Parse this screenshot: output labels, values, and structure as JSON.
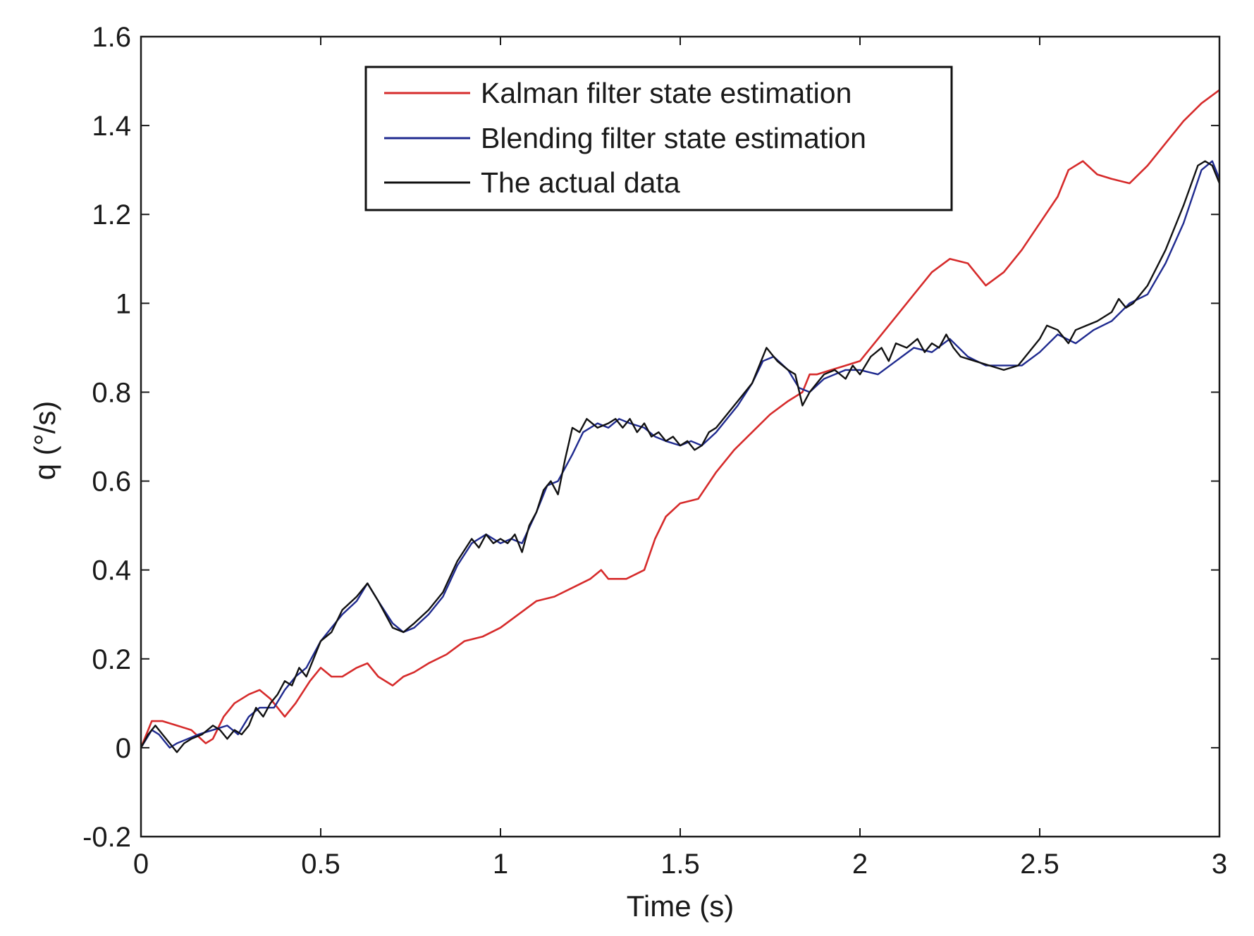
{
  "chart_data": {
    "type": "line",
    "title": "",
    "xlabel": "Time (s)",
    "ylabel": "q (°/s)",
    "xlim": [
      0,
      3
    ],
    "ylim": [
      -0.2,
      1.6
    ],
    "xticks": [
      0,
      0.5,
      1,
      1.5,
      2,
      2.5,
      3
    ],
    "xtick_labels": [
      "0",
      "0.5",
      "1",
      "1.5",
      "2",
      "2.5",
      "3"
    ],
    "yticks": [
      -0.2,
      0,
      0.2,
      0.4,
      0.6,
      0.8,
      1,
      1.2,
      1.4,
      1.6
    ],
    "ytick_labels": [
      "-0.2",
      "0",
      "0.2",
      "0.4",
      "0.6",
      "0.8",
      "1",
      "1.2",
      "1.4",
      "1.6"
    ],
    "grid": false,
    "legend_position": "top-center",
    "series": [
      {
        "name": "Kalman filter state estimation",
        "color": "#d62b2b",
        "x": [
          0,
          0.03,
          0.06,
          0.1,
          0.14,
          0.18,
          0.2,
          0.23,
          0.26,
          0.3,
          0.33,
          0.36,
          0.38,
          0.4,
          0.43,
          0.47,
          0.5,
          0.53,
          0.56,
          0.6,
          0.63,
          0.66,
          0.7,
          0.73,
          0.76,
          0.8,
          0.85,
          0.9,
          0.95,
          1.0,
          1.05,
          1.1,
          1.15,
          1.2,
          1.25,
          1.28,
          1.3,
          1.35,
          1.4,
          1.43,
          1.46,
          1.5,
          1.55,
          1.6,
          1.65,
          1.7,
          1.75,
          1.8,
          1.84,
          1.86,
          1.88,
          1.92,
          1.96,
          2.0,
          2.05,
          2.1,
          2.15,
          2.2,
          2.25,
          2.3,
          2.35,
          2.4,
          2.45,
          2.5,
          2.55,
          2.58,
          2.62,
          2.66,
          2.7,
          2.75,
          2.8,
          2.85,
          2.9,
          2.95,
          3.0
        ],
        "values": [
          0,
          0.06,
          0.06,
          0.05,
          0.04,
          0.01,
          0.02,
          0.07,
          0.1,
          0.12,
          0.13,
          0.11,
          0.09,
          0.07,
          0.1,
          0.15,
          0.18,
          0.16,
          0.16,
          0.18,
          0.19,
          0.16,
          0.14,
          0.16,
          0.17,
          0.19,
          0.21,
          0.24,
          0.25,
          0.27,
          0.3,
          0.33,
          0.34,
          0.36,
          0.38,
          0.4,
          0.38,
          0.38,
          0.4,
          0.47,
          0.52,
          0.55,
          0.56,
          0.62,
          0.67,
          0.71,
          0.75,
          0.78,
          0.8,
          0.84,
          0.84,
          0.85,
          0.86,
          0.87,
          0.92,
          0.97,
          1.02,
          1.07,
          1.1,
          1.09,
          1.04,
          1.07,
          1.12,
          1.18,
          1.24,
          1.3,
          1.32,
          1.29,
          1.28,
          1.27,
          1.31,
          1.36,
          1.41,
          1.45,
          1.48
        ]
      },
      {
        "name": "Blending filter state estimation",
        "color": "#1f2a8f",
        "x": [
          0,
          0.03,
          0.05,
          0.08,
          0.1,
          0.13,
          0.16,
          0.2,
          0.24,
          0.27,
          0.3,
          0.33,
          0.37,
          0.4,
          0.43,
          0.46,
          0.5,
          0.53,
          0.56,
          0.6,
          0.63,
          0.66,
          0.7,
          0.73,
          0.76,
          0.8,
          0.84,
          0.88,
          0.92,
          0.96,
          1.0,
          1.03,
          1.06,
          1.1,
          1.13,
          1.16,
          1.2,
          1.23,
          1.27,
          1.3,
          1.33,
          1.36,
          1.4,
          1.43,
          1.46,
          1.5,
          1.53,
          1.56,
          1.6,
          1.63,
          1.66,
          1.7,
          1.73,
          1.76,
          1.8,
          1.83,
          1.86,
          1.9,
          1.93,
          1.96,
          2.0,
          2.05,
          2.1,
          2.15,
          2.2,
          2.25,
          2.3,
          2.35,
          2.4,
          2.45,
          2.5,
          2.55,
          2.6,
          2.65,
          2.7,
          2.75,
          2.8,
          2.85,
          2.9,
          2.95,
          2.98,
          3.0
        ],
        "values": [
          0,
          0.04,
          0.03,
          0.0,
          0.01,
          0.02,
          0.03,
          0.04,
          0.05,
          0.03,
          0.07,
          0.09,
          0.09,
          0.13,
          0.16,
          0.18,
          0.24,
          0.27,
          0.3,
          0.33,
          0.37,
          0.33,
          0.28,
          0.26,
          0.27,
          0.3,
          0.34,
          0.41,
          0.46,
          0.48,
          0.46,
          0.47,
          0.46,
          0.53,
          0.59,
          0.6,
          0.66,
          0.71,
          0.73,
          0.72,
          0.74,
          0.73,
          0.72,
          0.7,
          0.69,
          0.68,
          0.69,
          0.68,
          0.71,
          0.74,
          0.77,
          0.82,
          0.87,
          0.88,
          0.85,
          0.81,
          0.8,
          0.83,
          0.84,
          0.85,
          0.85,
          0.84,
          0.87,
          0.9,
          0.89,
          0.92,
          0.88,
          0.86,
          0.86,
          0.86,
          0.89,
          0.93,
          0.91,
          0.94,
          0.96,
          1.0,
          1.02,
          1.09,
          1.18,
          1.3,
          1.32,
          1.28
        ]
      },
      {
        "name": "The actual data",
        "color": "#111111",
        "x": [
          0,
          0.02,
          0.04,
          0.06,
          0.08,
          0.1,
          0.12,
          0.14,
          0.17,
          0.2,
          0.22,
          0.24,
          0.26,
          0.28,
          0.3,
          0.32,
          0.34,
          0.36,
          0.38,
          0.4,
          0.42,
          0.44,
          0.46,
          0.48,
          0.5,
          0.53,
          0.56,
          0.6,
          0.63,
          0.66,
          0.7,
          0.73,
          0.76,
          0.8,
          0.84,
          0.88,
          0.92,
          0.94,
          0.96,
          0.98,
          1.0,
          1.02,
          1.04,
          1.06,
          1.08,
          1.1,
          1.12,
          1.14,
          1.16,
          1.18,
          1.2,
          1.22,
          1.24,
          1.27,
          1.3,
          1.32,
          1.34,
          1.36,
          1.38,
          1.4,
          1.42,
          1.44,
          1.46,
          1.48,
          1.5,
          1.52,
          1.54,
          1.56,
          1.58,
          1.6,
          1.63,
          1.66,
          1.7,
          1.74,
          1.77,
          1.8,
          1.82,
          1.84,
          1.86,
          1.88,
          1.9,
          1.93,
          1.96,
          1.98,
          2.0,
          2.03,
          2.06,
          2.08,
          2.1,
          2.13,
          2.16,
          2.18,
          2.2,
          2.22,
          2.24,
          2.26,
          2.28,
          2.32,
          2.36,
          2.4,
          2.44,
          2.48,
          2.5,
          2.52,
          2.55,
          2.58,
          2.6,
          2.63,
          2.66,
          2.7,
          2.72,
          2.74,
          2.76,
          2.8,
          2.85,
          2.9,
          2.94,
          2.96,
          2.98,
          3.0
        ],
        "values": [
          0,
          0.03,
          0.05,
          0.03,
          0.01,
          -0.01,
          0.01,
          0.02,
          0.03,
          0.05,
          0.04,
          0.02,
          0.04,
          0.03,
          0.05,
          0.09,
          0.07,
          0.1,
          0.12,
          0.15,
          0.14,
          0.18,
          0.16,
          0.2,
          0.24,
          0.26,
          0.31,
          0.34,
          0.37,
          0.33,
          0.27,
          0.26,
          0.28,
          0.31,
          0.35,
          0.42,
          0.47,
          0.45,
          0.48,
          0.46,
          0.47,
          0.46,
          0.48,
          0.44,
          0.5,
          0.53,
          0.58,
          0.6,
          0.57,
          0.65,
          0.72,
          0.71,
          0.74,
          0.72,
          0.73,
          0.74,
          0.72,
          0.74,
          0.71,
          0.73,
          0.7,
          0.71,
          0.69,
          0.7,
          0.68,
          0.69,
          0.67,
          0.68,
          0.71,
          0.72,
          0.75,
          0.78,
          0.82,
          0.9,
          0.87,
          0.85,
          0.84,
          0.77,
          0.8,
          0.82,
          0.84,
          0.85,
          0.83,
          0.86,
          0.84,
          0.88,
          0.9,
          0.87,
          0.91,
          0.9,
          0.92,
          0.89,
          0.91,
          0.9,
          0.93,
          0.9,
          0.88,
          0.87,
          0.86,
          0.85,
          0.86,
          0.9,
          0.92,
          0.95,
          0.94,
          0.91,
          0.94,
          0.95,
          0.96,
          0.98,
          1.01,
          0.99,
          1.0,
          1.04,
          1.12,
          1.22,
          1.31,
          1.32,
          1.31,
          1.27
        ]
      }
    ]
  }
}
